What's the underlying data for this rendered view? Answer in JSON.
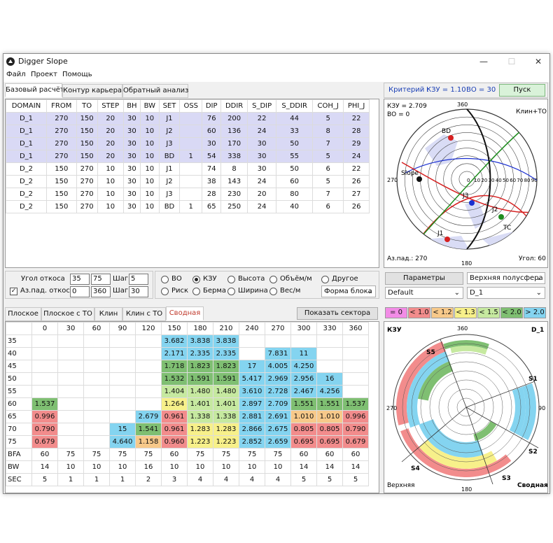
{
  "app": {
    "title": "Digger Slope"
  },
  "menu": [
    "Файл",
    "Проект",
    "Помощь"
  ],
  "main_tabs": [
    "Базовый расчёт",
    "Контур карьера",
    "Обратный анализ"
  ],
  "criteria": {
    "label": "Критерий :",
    "kzu": "КЗУ = 1.10",
    "vo": "ВО = 30",
    "run": "Пуск"
  },
  "base_table": {
    "headers": [
      "DOMAIN",
      "FROM",
      "TO",
      "STEP",
      "BH",
      "BW",
      "SET",
      "OSS",
      "DIP",
      "DDIR",
      "S_DIP",
      "S_DDIR",
      "COH_J",
      "PHI_J"
    ],
    "rows": [
      [
        "D_1",
        "270",
        "150",
        "20",
        "30",
        "10",
        "J1",
        "",
        "76",
        "200",
        "22",
        "44",
        "5",
        "22"
      ],
      [
        "D_1",
        "270",
        "150",
        "20",
        "30",
        "10",
        "J2",
        "",
        "60",
        "136",
        "24",
        "33",
        "8",
        "28"
      ],
      [
        "D_1",
        "270",
        "150",
        "20",
        "30",
        "10",
        "J3",
        "",
        "30",
        "170",
        "30",
        "50",
        "7",
        "29"
      ],
      [
        "D_1",
        "270",
        "150",
        "20",
        "30",
        "10",
        "BD",
        "1",
        "54",
        "338",
        "30",
        "55",
        "5",
        "24"
      ],
      [
        "D_2",
        "150",
        "270",
        "10",
        "30",
        "10",
        "J1",
        "",
        "74",
        "8",
        "30",
        "50",
        "6",
        "22"
      ],
      [
        "D_2",
        "150",
        "270",
        "10",
        "30",
        "10",
        "J2",
        "",
        "38",
        "143",
        "24",
        "60",
        "5",
        "26"
      ],
      [
        "D_2",
        "150",
        "270",
        "10",
        "30",
        "10",
        "J3",
        "",
        "28",
        "230",
        "20",
        "80",
        "7",
        "27"
      ],
      [
        "D_2",
        "150",
        "270",
        "10",
        "30",
        "10",
        "BD",
        "1",
        "65",
        "250",
        "24",
        "40",
        "6",
        "26"
      ]
    ]
  },
  "stereonet": {
    "kzu": "КЗУ = 2.709",
    "vo": "ВО = 0",
    "mode": "Клин+ТО",
    "az": "Аз.пад.: 270",
    "angle": "Угол: 60",
    "ticks": {
      "n": "360",
      "s": "180",
      "w": "270",
      "e": "90"
    },
    "scale": [
      "0",
      "10",
      "20",
      "30",
      "40",
      "50",
      "60",
      "70",
      "80",
      "90"
    ],
    "labels": [
      "BD",
      "Slope",
      "J3",
      "J2",
      "TC",
      "J1"
    ]
  },
  "slope_params": {
    "ugol_label": "Угол откоса",
    "ugol_from": "35",
    "ugol_to": "75",
    "shag_label": "Шаг",
    "ugol_step": "5",
    "az_label": "Аз.пад. откоса",
    "az_from": "0",
    "az_to": "360",
    "az_step": "30",
    "check": "✓"
  },
  "radios": [
    "ВО",
    "КЗУ",
    "Высота",
    "Объём/м",
    "Другое",
    "Риск",
    "Берма",
    "Ширина",
    "Вес/м"
  ],
  "forma": "Форма блока",
  "param_btn": "Параметры",
  "hemisphere": "Верхняя полусфера",
  "default": "Default",
  "domain_sel": "D_1",
  "lower_tabs": [
    "Плоское",
    "Плоское с ТО",
    "Клин",
    "Клин с ТО",
    "Сводная"
  ],
  "show_sectors": "Показать сектора",
  "legend": [
    "= 0",
    "< 1.0",
    "< 1.2",
    "< 1.3",
    "< 1.5",
    "< 2.0",
    "> 2.0"
  ],
  "legend_colors": [
    "#f28ce6",
    "#f28c8c",
    "#f7c98a",
    "#f7f08a",
    "#c6e9a0",
    "#7fbf72",
    "#84d4f0"
  ],
  "chart_data": {
    "type": "heatmap",
    "x": [
      "0",
      "30",
      "60",
      "90",
      "120",
      "150",
      "180",
      "210",
      "240",
      "270",
      "300",
      "330",
      "360"
    ],
    "y": [
      "35",
      "40",
      "45",
      "50",
      "55",
      "60",
      "65",
      "70",
      "75"
    ],
    "values": [
      [
        "",
        "",
        "",
        "",
        "",
        "3.682",
        "3.838",
        "3.838",
        "",
        "",
        "",
        "",
        ""
      ],
      [
        "",
        "",
        "",
        "",
        "",
        "2.171",
        "2.335",
        "2.335",
        "",
        "7.831",
        "11",
        "",
        ""
      ],
      [
        "",
        "",
        "",
        "",
        "",
        "1.718",
        "1.823",
        "1.823",
        "17",
        "4.005",
        "4.250",
        "",
        ""
      ],
      [
        "",
        "",
        "",
        "",
        "",
        "1.532",
        "1.591",
        "1.591",
        "5.417",
        "2.969",
        "2.956",
        "16",
        ""
      ],
      [
        "",
        "",
        "",
        "",
        "",
        "1.404",
        "1.480",
        "1.480",
        "3.610",
        "2.728",
        "2.467",
        "4.256",
        ""
      ],
      [
        "1.537",
        "",
        "",
        "",
        "",
        "1.264",
        "1.401",
        "1.401",
        "2.897",
        "2.709",
        "1.551",
        "1.551",
        "1.537"
      ],
      [
        "0.996",
        "",
        "",
        "",
        "2.679",
        "0.961",
        "1.338",
        "1.338",
        "2.881",
        "2.691",
        "1.010",
        "1.010",
        "0.996"
      ],
      [
        "0.790",
        "",
        "",
        "15",
        "1.541",
        "0.961",
        "1.283",
        "1.283",
        "2.866",
        "2.675",
        "0.805",
        "0.805",
        "0.790"
      ],
      [
        "0.679",
        "",
        "",
        "4.640",
        "1.158",
        "0.960",
        "1.223",
        "1.223",
        "2.852",
        "2.659",
        "0.695",
        "0.695",
        "0.679"
      ]
    ],
    "summary": [
      {
        "label": "BFA",
        "values": [
          "60",
          "75",
          "75",
          "75",
          "75",
          "60",
          "75",
          "75",
          "75",
          "75",
          "60",
          "60",
          "60"
        ]
      },
      {
        "label": "BW",
        "values": [
          "14",
          "10",
          "10",
          "10",
          "16",
          "10",
          "10",
          "10",
          "10",
          "10",
          "14",
          "14",
          "14"
        ]
      },
      {
        "label": "SEC",
        "values": [
          "5",
          "1",
          "1",
          "1",
          "2",
          "3",
          "4",
          "4",
          "4",
          "4",
          "5",
          "5",
          "5"
        ]
      }
    ]
  },
  "sector_plot": {
    "kzu": "КЗУ",
    "domain": "D_1",
    "hemi": "Верхняя",
    "title": "Сводная",
    "sectors": [
      "S5",
      "S1",
      "S2",
      "S3",
      "S4"
    ],
    "ticks": {
      "n": "360",
      "s": "180",
      "w": "270",
      "e": "90"
    }
  }
}
